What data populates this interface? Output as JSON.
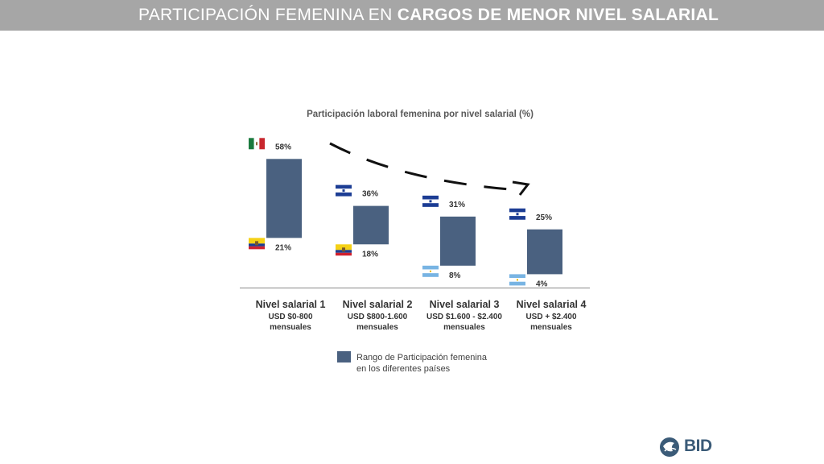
{
  "page": {
    "title_part1": "PARTICIPACIÓN FEMENINA EN ",
    "title_part2": "CARGOS DE MENOR NIVEL SALARIAL"
  },
  "logo": {
    "text": "BID"
  },
  "colors": {
    "bar": "#4a6180",
    "title_bar": "#a6a6a6",
    "axis": "#9e9e9e"
  },
  "chart_data": {
    "type": "bar",
    "subtype": "floating-range",
    "title": "Participación laboral femenina por nivel salarial (%)",
    "legend": {
      "label_line1": "Rango de Participación femenina",
      "label_line2": "en los diferentes países",
      "placement": "bottom-center"
    },
    "trend_arrow": "decreasing",
    "categories": [
      {
        "name": "Nivel salarial 1",
        "range": "USD $0-800",
        "period": "mensuales"
      },
      {
        "name": "Nivel salarial 2",
        "range": "USD $800-1.600",
        "period": "mensuales"
      },
      {
        "name": "Nivel salarial 3",
        "range": "USD $1.600 - $2.400",
        "period": "mensuales"
      },
      {
        "name": "Nivel salarial 4",
        "range": "USD + $2.400",
        "period": "mensuales"
      }
    ],
    "series": [
      {
        "low": 21,
        "high": 58,
        "low_label": "21%",
        "high_label": "58%",
        "low_flag": "ecuador-flag",
        "high_flag": "mexico-flag"
      },
      {
        "low": 18,
        "high": 36,
        "low_label": "18%",
        "high_label": "36%",
        "low_flag": "ecuador-flag",
        "high_flag": "honduras-flag"
      },
      {
        "low": 8,
        "high": 31,
        "low_label": "8%",
        "high_label": "31%",
        "low_flag": "argentina-flag",
        "high_flag": "el-salvador-flag"
      },
      {
        "low": 4,
        "high": 25,
        "low_label": "4%",
        "high_label": "25%",
        "low_flag": "argentina-flag",
        "high_flag": "honduras-flag"
      }
    ]
  }
}
